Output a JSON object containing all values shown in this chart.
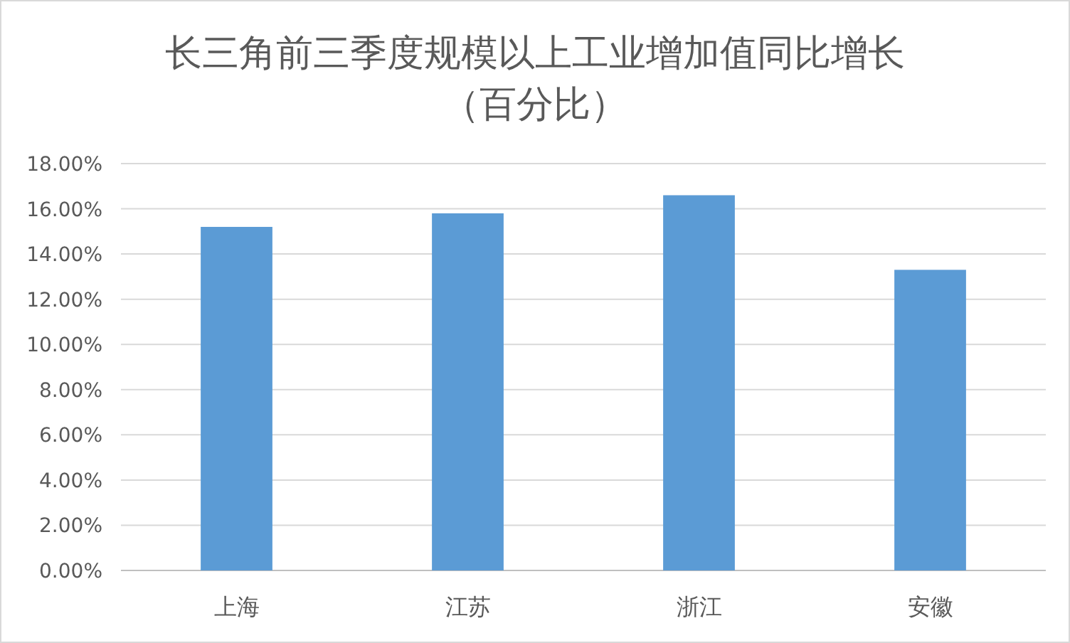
{
  "chart_data": {
    "type": "bar",
    "title": "长三角前三季度规模以上工业增加值同比增长",
    "subtitle": "（百分比）",
    "categories": [
      "上海",
      "江苏",
      "浙江",
      "安徽"
    ],
    "values": [
      15.2,
      15.8,
      16.6,
      13.3
    ],
    "color": "#5b9bd5",
    "ylim": [
      0,
      18
    ],
    "yticks": [
      {
        "value": 0,
        "label": "0.00%"
      },
      {
        "value": 2,
        "label": "2.00%"
      },
      {
        "value": 4,
        "label": "4.00%"
      },
      {
        "value": 6,
        "label": "6.00%"
      },
      {
        "value": 8,
        "label": "8.00%"
      },
      {
        "value": 10,
        "label": "10.00%"
      },
      {
        "value": 12,
        "label": "12.00%"
      },
      {
        "value": 14,
        "label": "14.00%"
      },
      {
        "value": 16,
        "label": "16.00%"
      },
      {
        "value": 18,
        "label": "18.00%"
      }
    ],
    "grid": "y"
  }
}
